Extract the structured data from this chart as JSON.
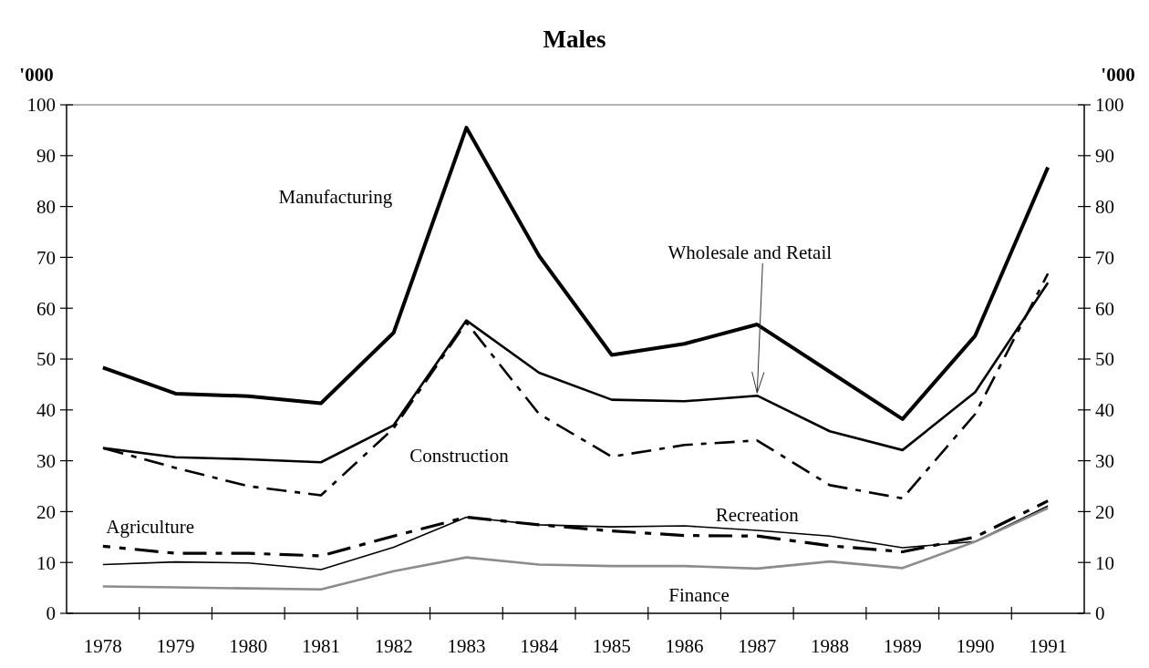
{
  "chart_data": {
    "type": "line",
    "title": "Males",
    "ylabel": "'000",
    "y2label": "'000",
    "categories": [
      "1978",
      "1979",
      "1980",
      "1981",
      "1982",
      "1983",
      "1984",
      "1985",
      "1986",
      "1987",
      "1988",
      "1989",
      "1990",
      "1991"
    ],
    "ylim": [
      0,
      100
    ],
    "yticks": [
      0,
      10,
      20,
      30,
      40,
      50,
      60,
      70,
      80,
      90,
      100
    ],
    "y2lim": [
      0,
      100
    ],
    "y2ticks": [
      0,
      10,
      20,
      30,
      40,
      50,
      60,
      70,
      80,
      90,
      100
    ],
    "series": [
      {
        "name": "Manufacturing",
        "color": "#000000",
        "line_style": "solid",
        "values": [
          48.3,
          43.2,
          42.7,
          41.3,
          55.2,
          95.5,
          70.3,
          50.8,
          53.0,
          56.8,
          47.5,
          38.2,
          54.6,
          87.7
        ]
      },
      {
        "name": "Wholesale and Retail",
        "color": "#000000",
        "line_style": "solid",
        "values": [
          32.5,
          30.7,
          30.3,
          29.7,
          37.0,
          57.6,
          47.3,
          42.0,
          41.7,
          42.8,
          35.8,
          32.1,
          43.5,
          65.0
        ]
      },
      {
        "name": "Construction",
        "color": "#000000",
        "line_style": "dashed",
        "values": [
          32.5,
          28.6,
          25.0,
          23.2,
          36.4,
          57.2,
          39.2,
          30.8,
          33.1,
          34.0,
          25.2,
          22.6,
          39.2,
          66.8
        ]
      },
      {
        "name": "Agriculture",
        "color": "#000000",
        "line_style": "dashed",
        "values": [
          13.2,
          11.8,
          11.8,
          11.3,
          15.2,
          18.9,
          17.4,
          16.2,
          15.3,
          15.2,
          13.3,
          12.1,
          15.0,
          22.1
        ]
      },
      {
        "name": "Recreation",
        "color": "#000000",
        "line_style": "solid",
        "values": [
          9.6,
          10.1,
          9.9,
          8.6,
          13.0,
          18.9,
          17.4,
          17.0,
          17.2,
          16.3,
          15.2,
          12.9,
          14.1,
          21.1
        ]
      },
      {
        "name": "Finance",
        "color": "#8c8c8c",
        "line_style": "solid",
        "values": [
          5.3,
          5.1,
          4.9,
          4.7,
          8.3,
          11.0,
          9.6,
          9.3,
          9.3,
          8.8,
          10.2,
          8.9,
          14.1,
          20.7
        ]
      }
    ]
  }
}
